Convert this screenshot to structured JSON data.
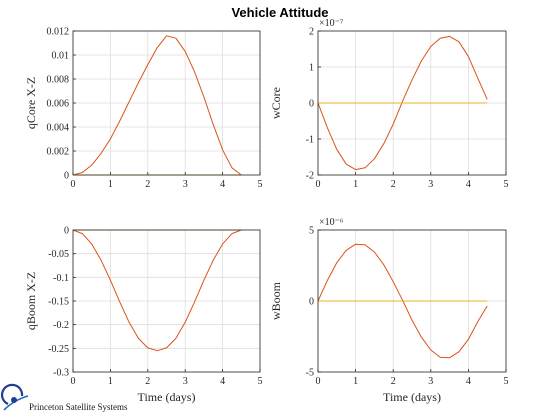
{
  "figure": {
    "title": "Vehicle Attitude",
    "logo_text": "Princeton Satellite Systems"
  },
  "colors": {
    "series_1": "#D95319",
    "series_2": "#EDB120",
    "grid": "#dedede",
    "axis": "#262626"
  },
  "chart_data": [
    {
      "type": "line",
      "ylabel": "qCore X-Z",
      "xlabel": "",
      "xlim": [
        0,
        5
      ],
      "ylim": [
        0,
        0.012
      ],
      "xticks": [
        "0",
        "1",
        "2",
        "3",
        "4",
        "5"
      ],
      "yticks": [
        "0",
        "0.002",
        "0.004",
        "0.006",
        "0.008",
        "0.01",
        "0.012"
      ],
      "exponent": "",
      "grid": true,
      "series": [
        {
          "x": [
            0,
            0.25,
            0.5,
            0.75,
            1.0,
            1.25,
            1.5,
            1.75,
            2.0,
            2.25,
            2.5,
            2.75,
            3.0,
            3.25,
            3.5,
            3.75,
            4.0,
            4.25,
            4.5
          ],
          "y": [
            0,
            0.00021,
            0.00082,
            0.0018,
            0.003,
            0.0045,
            0.0061,
            0.0077,
            0.0092,
            0.0106,
            0.0116,
            0.0114,
            0.0103,
            0.0086,
            0.0065,
            0.0042,
            0.0021,
            0.0006,
            0
          ]
        },
        {
          "x": [
            0,
            4.5
          ],
          "y": [
            0,
            0
          ]
        }
      ]
    },
    {
      "type": "line",
      "ylabel": "wCore",
      "xlabel": "",
      "xlim": [
        0,
        5
      ],
      "ylim": [
        -2,
        2
      ],
      "xticks": [
        "0",
        "1",
        "2",
        "3",
        "4",
        "5"
      ],
      "yticks": [
        "-2",
        "-1",
        "0",
        "1",
        "2"
      ],
      "exponent": "×10⁻⁷",
      "grid": true,
      "series": [
        {
          "x": [
            0,
            0.25,
            0.5,
            0.75,
            1.0,
            1.25,
            1.5,
            1.75,
            2.0,
            2.25,
            2.5,
            2.75,
            3.0,
            3.25,
            3.5,
            3.75,
            4.0,
            4.25,
            4.5
          ],
          "y": [
            0,
            -0.69,
            -1.29,
            -1.7,
            -1.85,
            -1.8,
            -1.55,
            -1.13,
            -0.59,
            0.05,
            0.64,
            1.17,
            1.57,
            1.8,
            1.85,
            1.7,
            1.29,
            0.69,
            0.1
          ]
        },
        {
          "x": [
            0,
            4.5
          ],
          "y": [
            0,
            0
          ]
        }
      ]
    },
    {
      "type": "line",
      "ylabel": "qBoom X-Z",
      "xlabel": "Time (days)",
      "xlim": [
        0,
        5
      ],
      "ylim": [
        -0.3,
        0
      ],
      "xticks": [
        "0",
        "1",
        "2",
        "3",
        "4",
        "5"
      ],
      "yticks": [
        "-0.3",
        "-0.25",
        "-0.2",
        "-0.15",
        "-0.1",
        "-0.05",
        "0"
      ],
      "exponent": "",
      "grid": true,
      "series": [
        {
          "x": [
            0,
            0.25,
            0.5,
            0.75,
            1.0,
            1.25,
            1.5,
            1.75,
            2.0,
            2.25,
            2.5,
            2.75,
            3.0,
            3.25,
            3.5,
            3.75,
            4.0,
            4.25,
            4.5
          ],
          "y": [
            0,
            -0.0076,
            -0.0295,
            -0.0637,
            -0.106,
            -0.152,
            -0.195,
            -0.229,
            -0.249,
            -0.255,
            -0.249,
            -0.229,
            -0.195,
            -0.152,
            -0.106,
            -0.0637,
            -0.0295,
            -0.0076,
            0
          ]
        },
        {
          "x": [
            0,
            4.5
          ],
          "y": [
            0,
            0
          ]
        }
      ]
    },
    {
      "type": "line",
      "ylabel": "wBoom",
      "xlabel": "Time (days)",
      "xlim": [
        0,
        5
      ],
      "ylim": [
        -5,
        5
      ],
      "xticks": [
        "0",
        "1",
        "2",
        "3",
        "4",
        "5"
      ],
      "yticks": [
        "-5",
        "0",
        "5"
      ],
      "exponent": "×10⁻⁶",
      "grid": true,
      "series": [
        {
          "x": [
            0,
            0.25,
            0.5,
            0.75,
            1.0,
            1.25,
            1.5,
            1.75,
            2.0,
            2.25,
            2.5,
            2.75,
            3.0,
            3.25,
            3.5,
            3.75,
            4.0,
            4.25,
            4.5
          ],
          "y": [
            0,
            1.45,
            2.7,
            3.57,
            4.0,
            3.96,
            3.45,
            2.55,
            1.36,
            0.05,
            -1.35,
            -2.55,
            -3.45,
            -3.96,
            -4.0,
            -3.57,
            -2.7,
            -1.45,
            -0.35
          ]
        },
        {
          "x": [
            0,
            4.5
          ],
          "y": [
            0,
            0
          ]
        }
      ]
    }
  ]
}
